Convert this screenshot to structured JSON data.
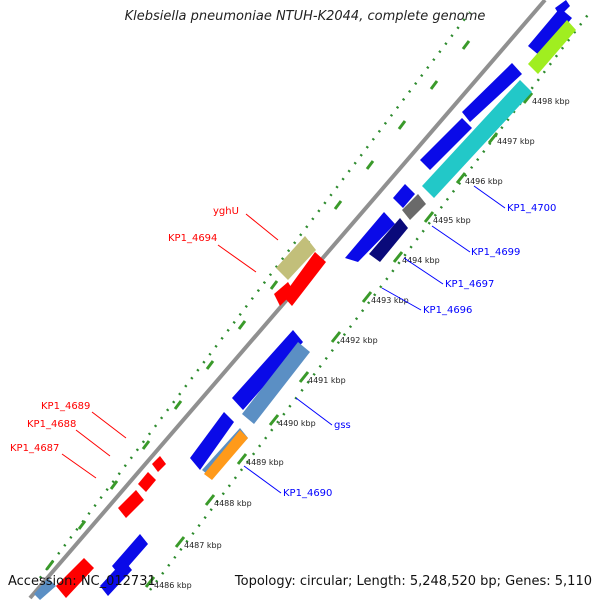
{
  "title": "Klebsiella pneumoniae NTUH-K2044, complete genome",
  "accession_text": "Accession: NC_012731",
  "summary_text": "Topology: circular; Length: 5,248,520 bp; Genes: 5,110",
  "scale_ticks": [
    {
      "id": "tick-4486",
      "label": "4486 kbp"
    },
    {
      "id": "tick-4487",
      "label": "4487 kbp"
    },
    {
      "id": "tick-4488",
      "label": "4488 kbp"
    },
    {
      "id": "tick-4489",
      "label": "4489 kbp"
    },
    {
      "id": "tick-4490",
      "label": "4490 kbp"
    },
    {
      "id": "tick-4491",
      "label": "4491 kbp"
    },
    {
      "id": "tick-4492",
      "label": "4492 kbp"
    },
    {
      "id": "tick-4493",
      "label": "4493 kbp"
    },
    {
      "id": "tick-4494",
      "label": "4494 kbp"
    },
    {
      "id": "tick-4495",
      "label": "4495 kbp"
    },
    {
      "id": "tick-4496",
      "label": "4496 kbp"
    },
    {
      "id": "tick-4497",
      "label": "4497 kbp"
    },
    {
      "id": "tick-4498",
      "label": "4498 kbp"
    }
  ],
  "gene_labels": [
    {
      "id": "yghU",
      "text": "yghU",
      "color": "#ff0000"
    },
    {
      "id": "KP1_4694",
      "text": "KP1_4694",
      "color": "#ff0000"
    },
    {
      "id": "KP1_4689",
      "text": "KP1_4689",
      "color": "#ff0000"
    },
    {
      "id": "KP1_4688",
      "text": "KP1_4688",
      "color": "#ff0000"
    },
    {
      "id": "KP1_4687",
      "text": "KP1_4687",
      "color": "#ff0000"
    },
    {
      "id": "KP1_4700",
      "text": "KP1_4700",
      "color": "#0000ff"
    },
    {
      "id": "KP1_4699",
      "text": "KP1_4699",
      "color": "#0000ff"
    },
    {
      "id": "KP1_4697",
      "text": "KP1_4697",
      "color": "#0000ff"
    },
    {
      "id": "KP1_4696",
      "text": "KP1_4696",
      "color": "#0000ff"
    },
    {
      "id": "gss",
      "text": "gss",
      "color": "#0000ff"
    },
    {
      "id": "KP1_4690",
      "text": "KP1_4690",
      "color": "#0000ff"
    }
  ],
  "colors": {
    "backbone": "#909090",
    "dots": "#2e8b2e",
    "dash": "#3a9a2a",
    "blue": "#0a0ae8",
    "red": "#ff0000",
    "steel": "#5b8fc4",
    "cyan": "#22c8c8",
    "lime": "#a0ee20",
    "olive": "#c2bf7a",
    "navy": "#0a0a7a",
    "gray": "#6a6a6a",
    "orange": "#ff9a1a"
  }
}
